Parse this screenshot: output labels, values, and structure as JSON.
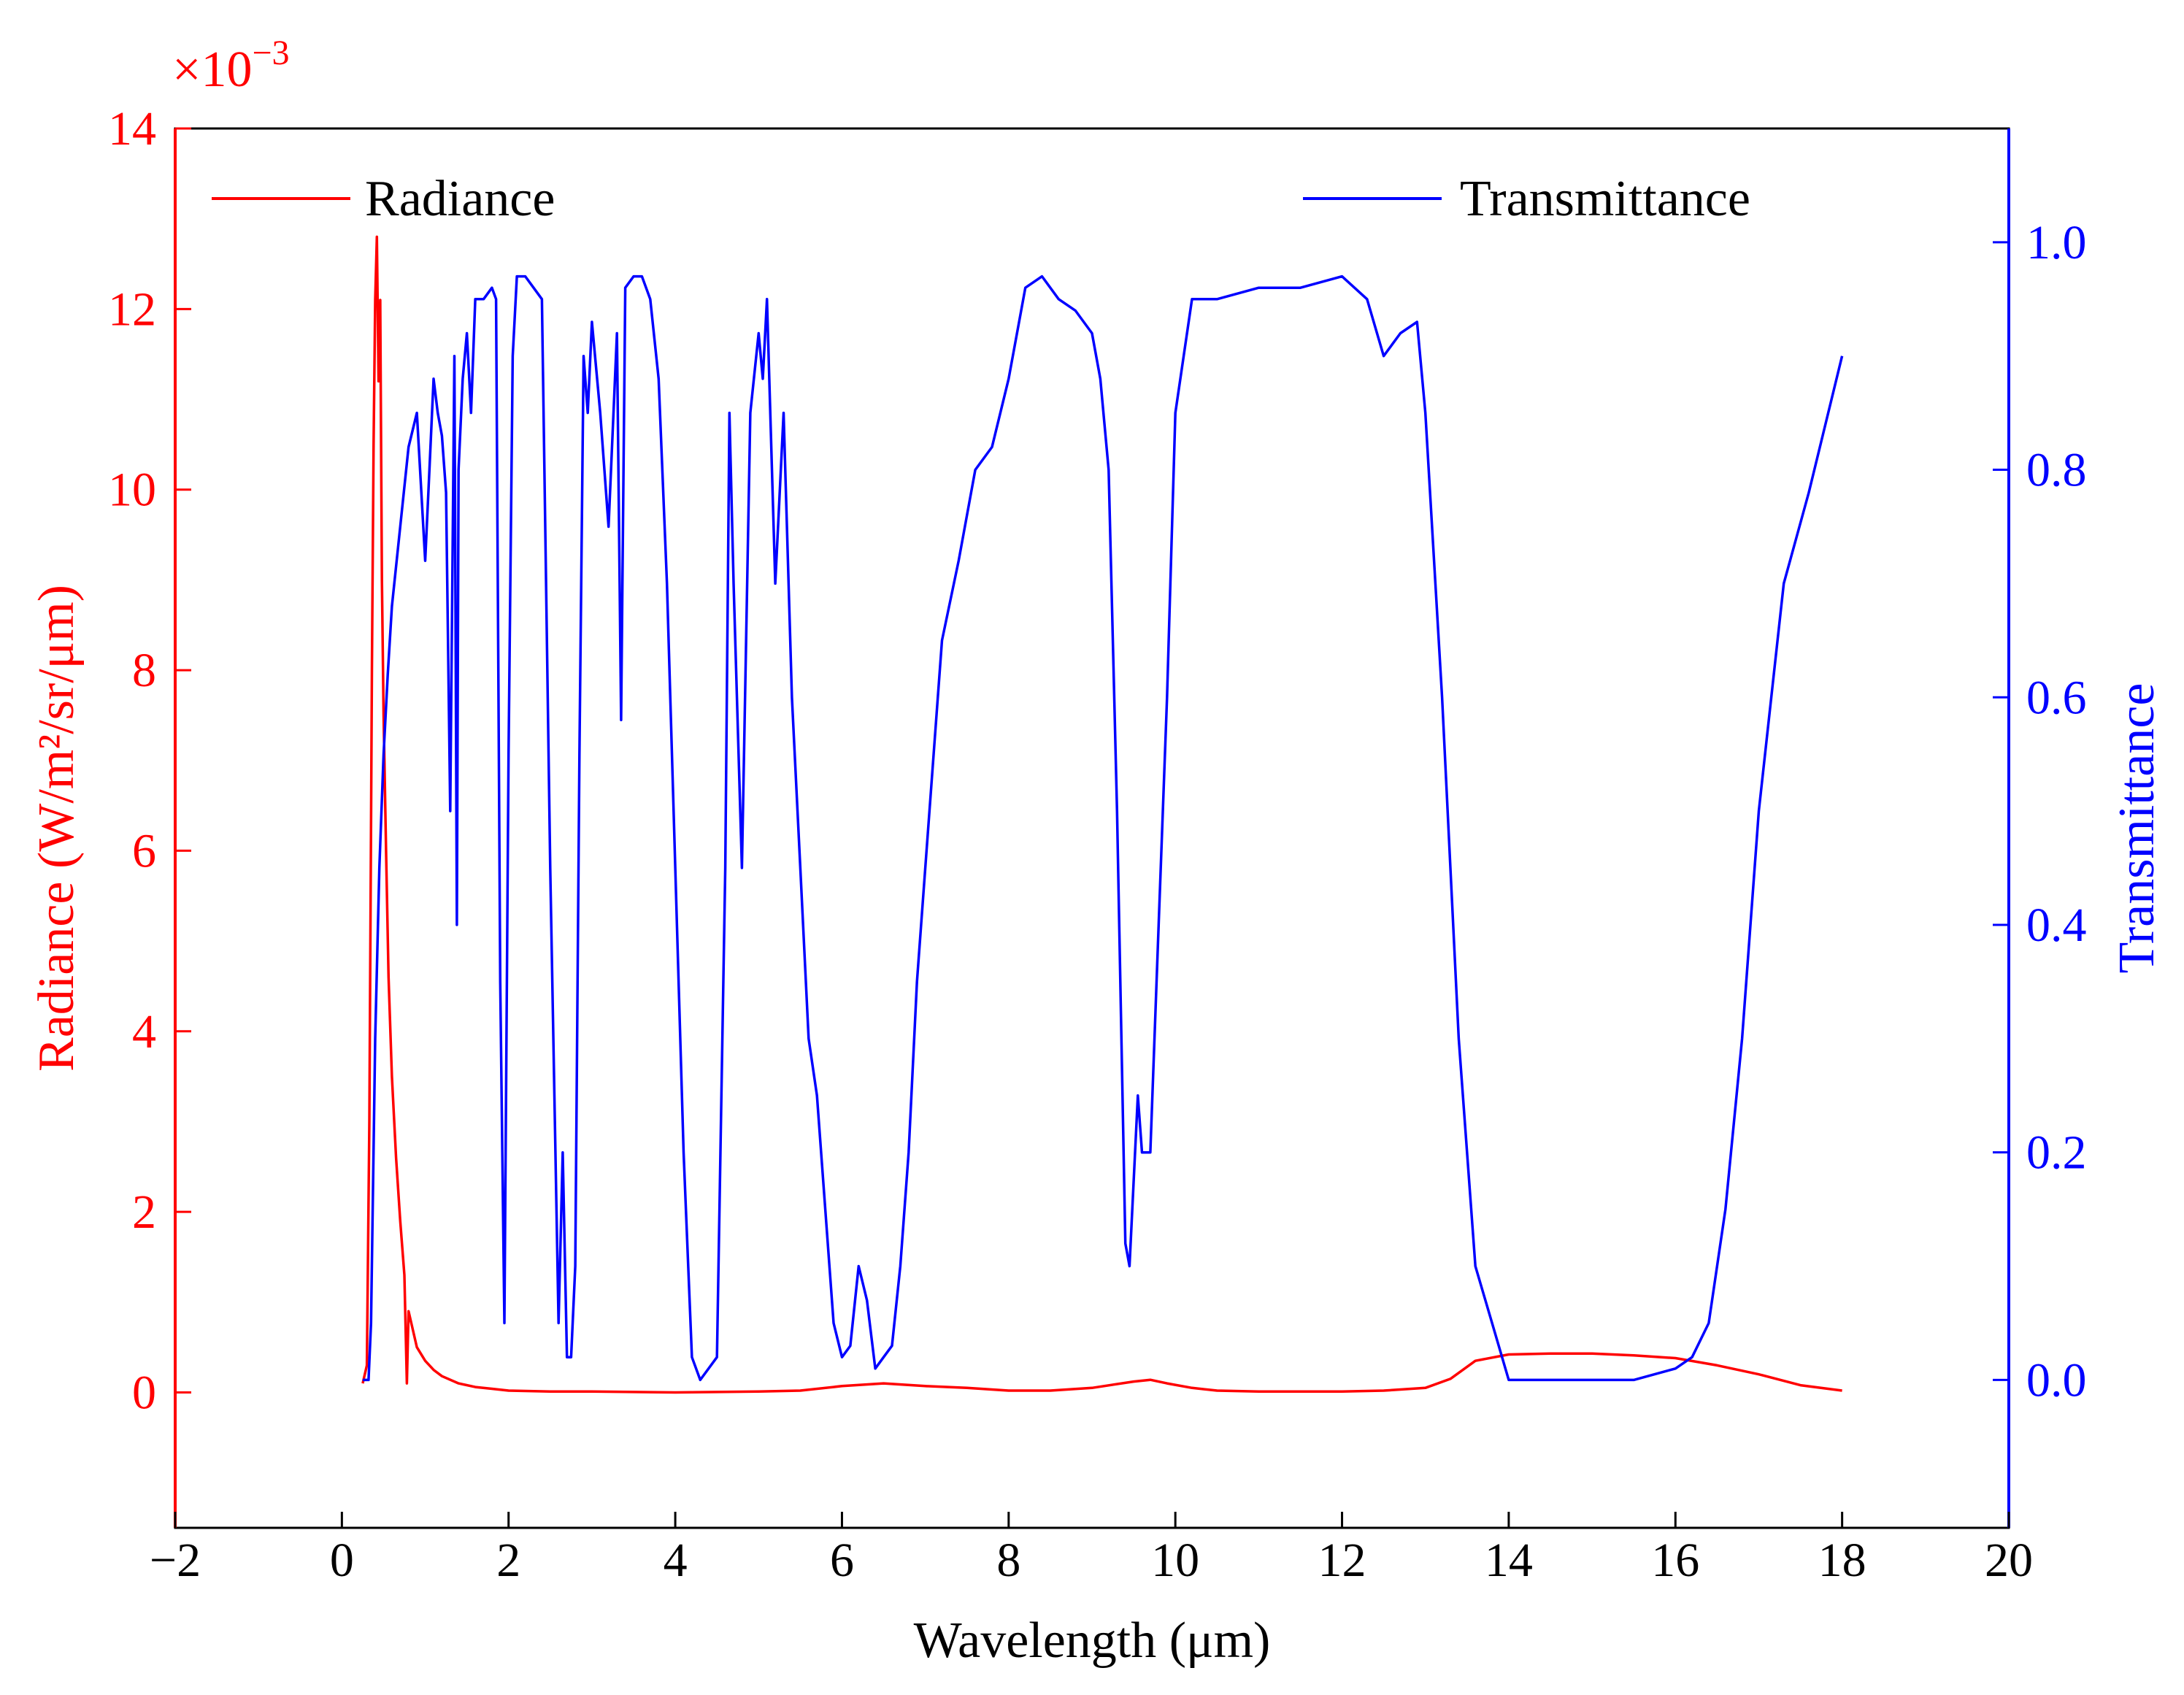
{
  "chart_data": {
    "type": "line",
    "title": "",
    "xlabel": "Wavelength (μm)",
    "ylabel_left": "Radiance (W/m²/sr/μm)",
    "ylabel_right": "Transmittance",
    "y_left_multiplier": "×10",
    "y_left_multiplier_exp": "−3",
    "xlim": [
      -2,
      20
    ],
    "ylim_left": [
      -1.5,
      14
    ],
    "ylim_right": [
      -0.13,
      1.1
    ],
    "x_ticks": [
      -2,
      0,
      2,
      4,
      6,
      8,
      10,
      12,
      14,
      16,
      18,
      20
    ],
    "x_tick_labels": [
      "−2",
      "0",
      "2",
      "4",
      "6",
      "8",
      "10",
      "12",
      "14",
      "16",
      "18",
      "20"
    ],
    "y_left_ticks": [
      0,
      2,
      4,
      6,
      8,
      10,
      12,
      14
    ],
    "y_left_tick_labels": [
      "0",
      "2",
      "4",
      "6",
      "8",
      "10",
      "12",
      "14"
    ],
    "y_right_ticks": [
      0.0,
      0.2,
      0.4,
      0.6,
      0.8,
      1.0
    ],
    "y_right_tick_labels": [
      "0.0",
      "0.2",
      "0.4",
      "0.6",
      "0.8",
      "1.0"
    ],
    "legend_position": "top",
    "colors": {
      "radiance": "#ff0000",
      "transmittance": "#0000ff",
      "axis": "#000000"
    },
    "series": [
      {
        "name": "Radiance",
        "axis": "left",
        "x": [
          0.25,
          0.3,
          0.33,
          0.36,
          0.38,
          0.4,
          0.42,
          0.44,
          0.46,
          0.48,
          0.5,
          0.53,
          0.56,
          0.6,
          0.65,
          0.7,
          0.75,
          0.78,
          0.8,
          0.85,
          0.9,
          1.0,
          1.1,
          1.2,
          1.4,
          1.6,
          1.8,
          2.0,
          2.5,
          3.0,
          4.0,
          5.0,
          5.5,
          6.0,
          6.5,
          7.0,
          7.5,
          8.0,
          8.5,
          9.0,
          9.5,
          9.7,
          9.9,
          10.2,
          10.5,
          11.0,
          12.0,
          12.5,
          13.0,
          13.3,
          13.6,
          14.0,
          14.5,
          15.0,
          15.5,
          16.0,
          16.5,
          17.0,
          17.5,
          18.0
        ],
        "values": [
          0.1,
          0.3,
          3.0,
          8.0,
          10.5,
          12.1,
          12.8,
          11.2,
          12.1,
          9.0,
          7.5,
          6.0,
          4.6,
          3.5,
          2.6,
          1.9,
          1.3,
          0.1,
          0.9,
          0.7,
          0.5,
          0.35,
          0.25,
          0.18,
          0.1,
          0.06,
          0.04,
          0.02,
          0.01,
          0.01,
          0.0,
          0.01,
          0.02,
          0.07,
          0.1,
          0.07,
          0.05,
          0.02,
          0.02,
          0.05,
          0.12,
          0.14,
          0.1,
          0.05,
          0.02,
          0.01,
          0.01,
          0.02,
          0.05,
          0.15,
          0.35,
          0.42,
          0.43,
          0.43,
          0.41,
          0.38,
          0.3,
          0.2,
          0.08,
          0.02
        ]
      },
      {
        "name": "Transmittance",
        "axis": "right",
        "x": [
          0.25,
          0.32,
          0.35,
          0.4,
          0.45,
          0.5,
          0.55,
          0.6,
          0.7,
          0.8,
          0.9,
          1.0,
          1.05,
          1.1,
          1.15,
          1.2,
          1.25,
          1.3,
          1.35,
          1.38,
          1.4,
          1.45,
          1.5,
          1.55,
          1.6,
          1.7,
          1.8,
          1.85,
          1.9,
          1.95,
          2.0,
          2.05,
          2.1,
          2.2,
          2.3,
          2.4,
          2.5,
          2.55,
          2.6,
          2.65,
          2.7,
          2.75,
          2.8,
          2.85,
          2.9,
          2.95,
          3.0,
          3.1,
          3.2,
          3.3,
          3.35,
          3.4,
          3.5,
          3.6,
          3.7,
          3.8,
          3.9,
          4.0,
          4.1,
          4.2,
          4.3,
          4.5,
          4.6,
          4.65,
          4.7,
          4.8,
          4.9,
          5.0,
          5.05,
          5.1,
          5.2,
          5.3,
          5.4,
          5.5,
          5.6,
          5.7,
          5.8,
          5.9,
          6.0,
          6.1,
          6.2,
          6.3,
          6.4,
          6.5,
          6.6,
          6.7,
          6.8,
          6.9,
          7.0,
          7.2,
          7.4,
          7.6,
          7.8,
          8.0,
          8.2,
          8.4,
          8.6,
          8.8,
          9.0,
          9.1,
          9.2,
          9.3,
          9.4,
          9.45,
          9.55,
          9.6,
          9.7,
          9.8,
          9.9,
          10.0,
          10.2,
          10.5,
          11.0,
          11.5,
          12.0,
          12.3,
          12.5,
          12.7,
          12.9,
          13.0,
          13.2,
          13.4,
          13.6,
          13.8,
          14.0,
          14.5,
          15.0,
          15.5,
          16.0,
          16.2,
          16.4,
          16.6,
          16.8,
          17.0,
          17.3,
          17.6,
          18.0
        ],
        "values": [
          0.0,
          0.0,
          0.05,
          0.3,
          0.45,
          0.55,
          0.62,
          0.68,
          0.75,
          0.82,
          0.85,
          0.72,
          0.8,
          0.88,
          0.85,
          0.83,
          0.78,
          0.5,
          0.9,
          0.4,
          0.8,
          0.88,
          0.92,
          0.85,
          0.95,
          0.95,
          0.96,
          0.95,
          0.35,
          0.05,
          0.55,
          0.9,
          0.97,
          0.97,
          0.96,
          0.95,
          0.45,
          0.25,
          0.05,
          0.2,
          0.02,
          0.02,
          0.1,
          0.55,
          0.9,
          0.85,
          0.93,
          0.85,
          0.75,
          0.92,
          0.58,
          0.96,
          0.97,
          0.97,
          0.95,
          0.88,
          0.7,
          0.45,
          0.2,
          0.02,
          0.0,
          0.02,
          0.45,
          0.85,
          0.7,
          0.45,
          0.85,
          0.92,
          0.88,
          0.95,
          0.7,
          0.85,
          0.6,
          0.45,
          0.3,
          0.25,
          0.15,
          0.05,
          0.02,
          0.03,
          0.1,
          0.07,
          0.01,
          0.02,
          0.03,
          0.1,
          0.2,
          0.35,
          0.45,
          0.65,
          0.72,
          0.8,
          0.82,
          0.88,
          0.96,
          0.97,
          0.95,
          0.94,
          0.92,
          0.88,
          0.8,
          0.5,
          0.12,
          0.1,
          0.25,
          0.2,
          0.2,
          0.4,
          0.6,
          0.85,
          0.95,
          0.95,
          0.96,
          0.96,
          0.97,
          0.95,
          0.9,
          0.92,
          0.93,
          0.85,
          0.6,
          0.3,
          0.1,
          0.05,
          0.0,
          0.0,
          0.0,
          0.0,
          0.01,
          0.02,
          0.05,
          0.15,
          0.3,
          0.5,
          0.7,
          0.78,
          0.9
        ]
      }
    ]
  }
}
